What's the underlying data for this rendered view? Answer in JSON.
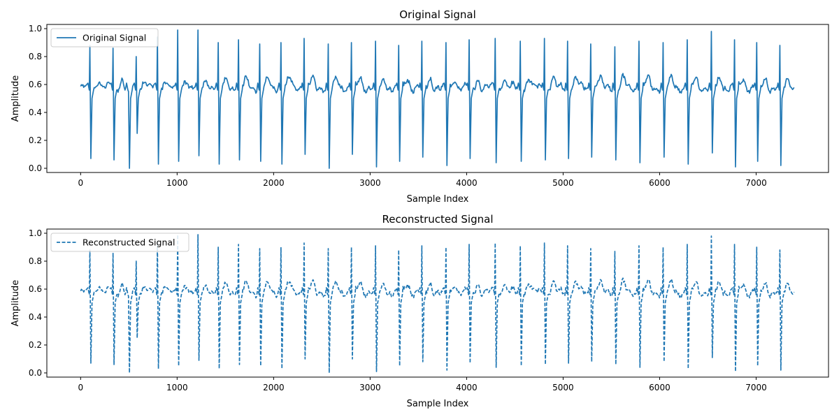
{
  "chart_data": [
    {
      "type": "line",
      "title": "Original Signal",
      "xlabel": "Sample Index",
      "ylabel": "Amplitude",
      "xlim": [
        -350,
        7750
      ],
      "ylim": [
        -0.03,
        1.03
      ],
      "xticks": [
        0,
        1000,
        2000,
        3000,
        4000,
        5000,
        6000,
        7000
      ],
      "yticks": [
        0.0,
        0.2,
        0.4,
        0.6,
        0.8,
        1.0
      ],
      "xtick_labels": [
        "0",
        "1000",
        "2000",
        "3000",
        "4000",
        "5000",
        "6000",
        "7000"
      ],
      "ytick_labels": [
        "0.0",
        "0.2",
        "0.4",
        "0.6",
        "0.8",
        "1.0"
      ],
      "grid": false,
      "legend_position": "upper-left",
      "series": [
        {
          "name": "Original Signal",
          "color": "#1f77b4",
          "line_style": "solid",
          "baseline": 0.58,
          "x_end": 7400,
          "beats": [
            {
              "x": 100,
              "peak": 0.88,
              "trough": 0.07
            },
            {
              "x": 340,
              "peak": 0.86,
              "trough": 0.06
            },
            {
              "x": 500,
              "peak": 0.55,
              "trough": 0.0
            },
            {
              "x": 580,
              "peak": 0.8,
              "trough": 0.25
            },
            {
              "x": 800,
              "peak": 0.94,
              "trough": 0.03
            },
            {
              "x": 1010,
              "peak": 0.99,
              "trough": 0.05
            },
            {
              "x": 1220,
              "peak": 0.99,
              "trough": 0.09
            },
            {
              "x": 1430,
              "peak": 0.9,
              "trough": 0.03
            },
            {
              "x": 1640,
              "peak": 0.92,
              "trough": 0.06
            },
            {
              "x": 1860,
              "peak": 0.89,
              "trough": 0.05
            },
            {
              "x": 2080,
              "peak": 0.9,
              "trough": 0.03
            },
            {
              "x": 2320,
              "peak": 0.93,
              "trough": 0.1
            },
            {
              "x": 2570,
              "peak": 0.89,
              "trough": 0.0
            },
            {
              "x": 2810,
              "peak": 0.9,
              "trough": 0.1
            },
            {
              "x": 3060,
              "peak": 0.91,
              "trough": 0.01
            },
            {
              "x": 3300,
              "peak": 0.88,
              "trough": 0.05
            },
            {
              "x": 3540,
              "peak": 0.91,
              "trough": 0.08
            },
            {
              "x": 3790,
              "peak": 0.9,
              "trough": 0.02
            },
            {
              "x": 4030,
              "peak": 0.92,
              "trough": 0.07
            },
            {
              "x": 4300,
              "peak": 0.93,
              "trough": 0.04
            },
            {
              "x": 4560,
              "peak": 0.91,
              "trough": 0.05
            },
            {
              "x": 4810,
              "peak": 0.93,
              "trough": 0.06
            },
            {
              "x": 5050,
              "peak": 0.91,
              "trough": 0.07
            },
            {
              "x": 5290,
              "peak": 0.89,
              "trough": 0.08
            },
            {
              "x": 5540,
              "peak": 0.87,
              "trough": 0.06
            },
            {
              "x": 5790,
              "peak": 0.91,
              "trough": 0.04
            },
            {
              "x": 6040,
              "peak": 0.9,
              "trough": 0.08
            },
            {
              "x": 6290,
              "peak": 0.92,
              "trough": 0.03
            },
            {
              "x": 6540,
              "peak": 0.98,
              "trough": 0.11
            },
            {
              "x": 6780,
              "peak": 0.92,
              "trough": 0.01
            },
            {
              "x": 7010,
              "peak": 0.9,
              "trough": 0.05
            },
            {
              "x": 7250,
              "peak": 0.88,
              "trough": 0.02
            }
          ]
        }
      ]
    },
    {
      "type": "line",
      "title": "Reconstructed Signal",
      "xlabel": "Sample Index",
      "ylabel": "Amplitude",
      "xlim": [
        -350,
        7750
      ],
      "ylim": [
        -0.03,
        1.03
      ],
      "xticks": [
        0,
        1000,
        2000,
        3000,
        4000,
        5000,
        6000,
        7000
      ],
      "yticks": [
        0.0,
        0.2,
        0.4,
        0.6,
        0.8,
        1.0
      ],
      "xtick_labels": [
        "0",
        "1000",
        "2000",
        "3000",
        "4000",
        "5000",
        "6000",
        "7000"
      ],
      "ytick_labels": [
        "0.0",
        "0.2",
        "0.4",
        "0.6",
        "0.8",
        "1.0"
      ],
      "grid": false,
      "legend_position": "upper-left",
      "series": [
        {
          "name": "Reconstructed Signal",
          "color": "#1f77b4",
          "line_style": "dashed",
          "baseline": 0.58,
          "x_end": 7400,
          "beats": [
            {
              "x": 100,
              "peak": 0.88,
              "trough": 0.07
            },
            {
              "x": 340,
              "peak": 0.86,
              "trough": 0.06
            },
            {
              "x": 500,
              "peak": 0.55,
              "trough": 0.0
            },
            {
              "x": 580,
              "peak": 0.8,
              "trough": 0.25
            },
            {
              "x": 800,
              "peak": 0.94,
              "trough": 0.03
            },
            {
              "x": 1010,
              "peak": 0.99,
              "trough": 0.05
            },
            {
              "x": 1220,
              "peak": 0.99,
              "trough": 0.09
            },
            {
              "x": 1430,
              "peak": 0.9,
              "trough": 0.03
            },
            {
              "x": 1640,
              "peak": 0.92,
              "trough": 0.06
            },
            {
              "x": 1860,
              "peak": 0.89,
              "trough": 0.05
            },
            {
              "x": 2080,
              "peak": 0.9,
              "trough": 0.03
            },
            {
              "x": 2320,
              "peak": 0.93,
              "trough": 0.1
            },
            {
              "x": 2570,
              "peak": 0.89,
              "trough": 0.0
            },
            {
              "x": 2810,
              "peak": 0.9,
              "trough": 0.1
            },
            {
              "x": 3060,
              "peak": 0.91,
              "trough": 0.01
            },
            {
              "x": 3300,
              "peak": 0.88,
              "trough": 0.05
            },
            {
              "x": 3540,
              "peak": 0.91,
              "trough": 0.08
            },
            {
              "x": 3790,
              "peak": 0.9,
              "trough": 0.02
            },
            {
              "x": 4030,
              "peak": 0.92,
              "trough": 0.07
            },
            {
              "x": 4300,
              "peak": 0.93,
              "trough": 0.04
            },
            {
              "x": 4560,
              "peak": 0.91,
              "trough": 0.05
            },
            {
              "x": 4810,
              "peak": 0.93,
              "trough": 0.06
            },
            {
              "x": 5050,
              "peak": 0.91,
              "trough": 0.07
            },
            {
              "x": 5290,
              "peak": 0.89,
              "trough": 0.08
            },
            {
              "x": 5540,
              "peak": 0.87,
              "trough": 0.06
            },
            {
              "x": 5790,
              "peak": 0.91,
              "trough": 0.04
            },
            {
              "x": 6040,
              "peak": 0.9,
              "trough": 0.08
            },
            {
              "x": 6290,
              "peak": 0.92,
              "trough": 0.03
            },
            {
              "x": 6540,
              "peak": 0.98,
              "trough": 0.11
            },
            {
              "x": 6780,
              "peak": 0.92,
              "trough": 0.01
            },
            {
              "x": 7010,
              "peak": 0.9,
              "trough": 0.05
            },
            {
              "x": 7250,
              "peak": 0.88,
              "trough": 0.02
            }
          ]
        }
      ]
    }
  ]
}
